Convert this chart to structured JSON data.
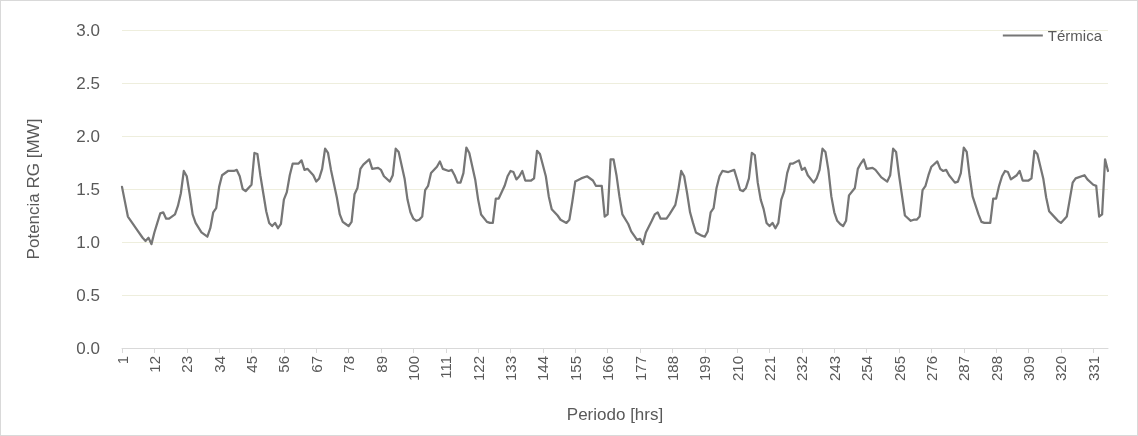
{
  "chart_data": {
    "type": "line",
    "xlabel": "Periodo [hrs]",
    "ylabel": "Potencia RG [MW]",
    "xlim": [
      1,
      336
    ],
    "xticks": [
      1,
      12,
      23,
      34,
      45,
      56,
      67,
      78,
      89,
      100,
      111,
      122,
      133,
      144,
      155,
      166,
      177,
      188,
      199,
      210,
      221,
      232,
      243,
      254,
      265,
      276,
      287,
      298,
      309,
      320,
      331
    ],
    "ylim": [
      0,
      3
    ],
    "yticks": [
      {
        "value": 0,
        "label": "0.0"
      },
      {
        "value": 0.5,
        "label": "0.5"
      },
      {
        "value": 1,
        "label": "1.0"
      },
      {
        "value": 1.5,
        "label": "1.5"
      },
      {
        "value": 2,
        "label": "2.0"
      },
      {
        "value": 2.5,
        "label": "2.5"
      },
      {
        "value": 3,
        "label": "3.0"
      }
    ],
    "grid": "y",
    "legend": "top right",
    "marker": "none",
    "line_style": "solid",
    "series": [
      {
        "name": "Térmica",
        "color": "#767676",
        "x": [
          1,
          3,
          6,
          8,
          9,
          10,
          11,
          12,
          13,
          14,
          15,
          16,
          17,
          19,
          20,
          21,
          22,
          23,
          24,
          25,
          26,
          28,
          30,
          31,
          32,
          33,
          34,
          35,
          37,
          39,
          40,
          41,
          42,
          43,
          45,
          46,
          47,
          48,
          49,
          50,
          51,
          52,
          53,
          54,
          55,
          56,
          57,
          58,
          59,
          61,
          62,
          63,
          64,
          66,
          67,
          68,
          69,
          70,
          71,
          72,
          74,
          75,
          76,
          77,
          78,
          79,
          80,
          81,
          82,
          83,
          85,
          86,
          88,
          89,
          90,
          92,
          93,
          94,
          95,
          97,
          98,
          99,
          100,
          101,
          102,
          103,
          104,
          105,
          106,
          108,
          109,
          110,
          112,
          113,
          114,
          115,
          116,
          117,
          118,
          119,
          121,
          122,
          123,
          125,
          126,
          127,
          128,
          129,
          131,
          132,
          133,
          134,
          135,
          136,
          137,
          138,
          140,
          141,
          142,
          143,
          145,
          146,
          147,
          149,
          150,
          152,
          153,
          154,
          155,
          157,
          159,
          161,
          162,
          164,
          165,
          166,
          167,
          168,
          169,
          170,
          171,
          173,
          174,
          175,
          176,
          177,
          178,
          179,
          181,
          182,
          183,
          184,
          186,
          187,
          189,
          190,
          191,
          192,
          193,
          194,
          195,
          196,
          198,
          199,
          200,
          201,
          202,
          203,
          204,
          205,
          207,
          209,
          210,
          211,
          212,
          213,
          214,
          215,
          216,
          217,
          218,
          219,
          220,
          221,
          222,
          223,
          224,
          225,
          226,
          227,
          228,
          229,
          231,
          232,
          233,
          234,
          236,
          237,
          238,
          239,
          240,
          241,
          242,
          243,
          244,
          245,
          246,
          247,
          248,
          250,
          251,
          252,
          253,
          254,
          256,
          257,
          259,
          261,
          262,
          263,
          264,
          265,
          266,
          267,
          269,
          270,
          271,
          272,
          273,
          274,
          275,
          276,
          278,
          279,
          280,
          281,
          282,
          284,
          285,
          286,
          287,
          288,
          289,
          290,
          292,
          293,
          294,
          296,
          297,
          298,
          299,
          300,
          301,
          302,
          303,
          305,
          306,
          307,
          309,
          310,
          311,
          312,
          314,
          315,
          316,
          318,
          319,
          320,
          322,
          323,
          324,
          325,
          328,
          329,
          331,
          332,
          333,
          334,
          335,
          336
        ],
        "values": [
          1.52,
          1.24,
          1.12,
          1.04,
          1.01,
          1.04,
          0.98,
          1.09,
          1.18,
          1.27,
          1.28,
          1.22,
          1.22,
          1.26,
          1.34,
          1.46,
          1.67,
          1.62,
          1.45,
          1.26,
          1.18,
          1.09,
          1.05,
          1.13,
          1.28,
          1.32,
          1.52,
          1.63,
          1.67,
          1.67,
          1.68,
          1.62,
          1.5,
          1.48,
          1.54,
          1.84,
          1.83,
          1.63,
          1.46,
          1.29,
          1.18,
          1.15,
          1.18,
          1.13,
          1.17,
          1.4,
          1.47,
          1.63,
          1.74,
          1.74,
          1.77,
          1.68,
          1.69,
          1.63,
          1.57,
          1.6,
          1.69,
          1.88,
          1.84,
          1.68,
          1.42,
          1.26,
          1.19,
          1.17,
          1.15,
          1.19,
          1.45,
          1.51,
          1.69,
          1.73,
          1.78,
          1.69,
          1.7,
          1.68,
          1.62,
          1.57,
          1.63,
          1.88,
          1.85,
          1.6,
          1.4,
          1.28,
          1.22,
          1.2,
          1.21,
          1.24,
          1.49,
          1.53,
          1.65,
          1.71,
          1.76,
          1.69,
          1.67,
          1.68,
          1.63,
          1.56,
          1.56,
          1.65,
          1.89,
          1.84,
          1.59,
          1.4,
          1.26,
          1.19,
          1.18,
          1.18,
          1.41,
          1.41,
          1.53,
          1.62,
          1.67,
          1.66,
          1.59,
          1.62,
          1.67,
          1.58,
          1.58,
          1.6,
          1.86,
          1.83,
          1.62,
          1.43,
          1.31,
          1.25,
          1.21,
          1.18,
          1.21,
          1.38,
          1.57,
          1.6,
          1.62,
          1.58,
          1.53,
          1.53,
          1.24,
          1.26,
          1.78,
          1.78,
          1.63,
          1.43,
          1.26,
          1.17,
          1.1,
          1.06,
          1.02,
          1.03,
          0.98,
          1.09,
          1.2,
          1.26,
          1.28,
          1.22,
          1.22,
          1.26,
          1.35,
          1.49,
          1.67,
          1.62,
          1.46,
          1.28,
          1.18,
          1.09,
          1.06,
          1.05,
          1.1,
          1.28,
          1.32,
          1.51,
          1.62,
          1.67,
          1.66,
          1.68,
          1.59,
          1.49,
          1.48,
          1.51,
          1.6,
          1.84,
          1.82,
          1.56,
          1.4,
          1.31,
          1.18,
          1.15,
          1.18,
          1.13,
          1.18,
          1.4,
          1.48,
          1.65,
          1.74,
          1.74,
          1.77,
          1.68,
          1.7,
          1.63,
          1.56,
          1.6,
          1.68,
          1.88,
          1.85,
          1.68,
          1.43,
          1.28,
          1.2,
          1.17,
          1.15,
          1.2,
          1.44,
          1.51,
          1.69,
          1.74,
          1.78,
          1.69,
          1.7,
          1.68,
          1.61,
          1.57,
          1.63,
          1.88,
          1.85,
          1.63,
          1.44,
          1.25,
          1.2,
          1.21,
          1.21,
          1.24,
          1.49,
          1.53,
          1.63,
          1.71,
          1.76,
          1.69,
          1.67,
          1.68,
          1.63,
          1.56,
          1.57,
          1.65,
          1.89,
          1.85,
          1.62,
          1.43,
          1.26,
          1.19,
          1.18,
          1.18,
          1.41,
          1.41,
          1.53,
          1.62,
          1.67,
          1.66,
          1.59,
          1.63,
          1.67,
          1.58,
          1.58,
          1.6,
          1.86,
          1.83,
          1.6,
          1.42,
          1.29,
          1.23,
          1.2,
          1.18,
          1.24,
          1.4,
          1.56,
          1.6,
          1.63,
          1.59,
          1.54,
          1.53,
          1.24,
          1.26,
          1.78,
          1.67
        ]
      }
    ]
  }
}
